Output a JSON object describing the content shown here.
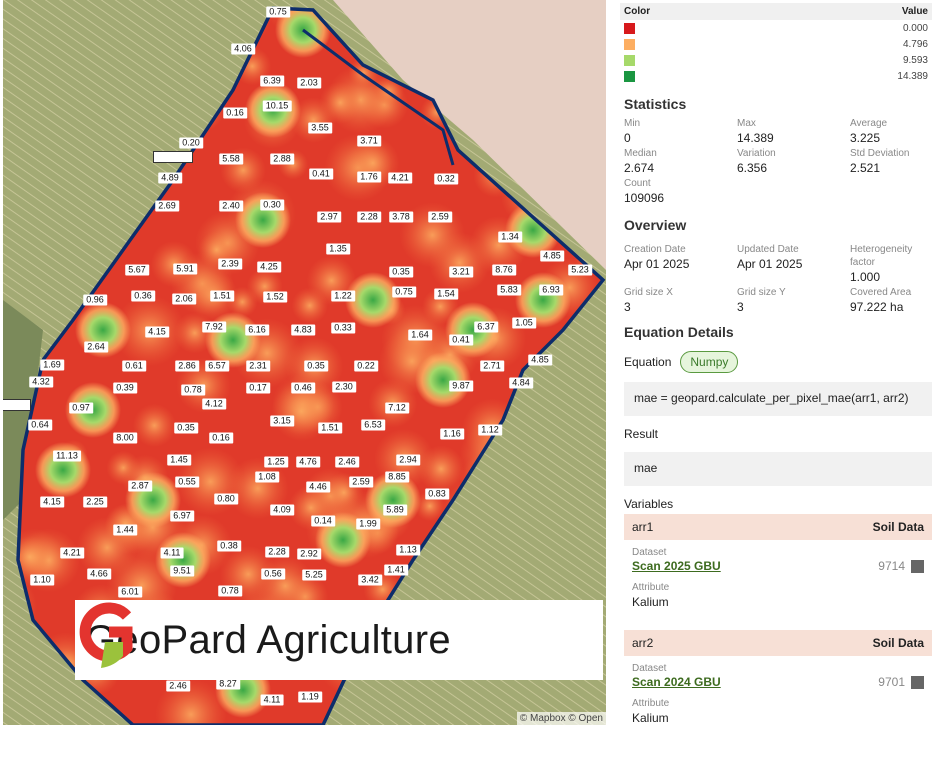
{
  "legend": {
    "header_color": "Color",
    "header_value": "Value",
    "items": [
      {
        "color": "#d7191c",
        "value": "0.000"
      },
      {
        "color": "#fdae61",
        "value": "4.796"
      },
      {
        "color": "#a6d96a",
        "value": "9.593"
      },
      {
        "color": "#1a9641",
        "value": "14.389"
      }
    ]
  },
  "statistics": {
    "title": "Statistics",
    "items": [
      {
        "label": "Min",
        "value": "0"
      },
      {
        "label": "Max",
        "value": "14.389"
      },
      {
        "label": "Average",
        "value": "3.225"
      },
      {
        "label": "Median",
        "value": "2.674"
      },
      {
        "label": "Variation",
        "value": "6.356"
      },
      {
        "label": "Std Deviation",
        "value": "2.521"
      },
      {
        "label": "Count",
        "value": "109096"
      }
    ]
  },
  "overview": {
    "title": "Overview",
    "items": [
      {
        "label": "Creation Date",
        "value": "Apr 01 2025"
      },
      {
        "label": "Updated Date",
        "value": "Apr 01 2025"
      },
      {
        "label": "Heterogeneity factor",
        "value": "1.000"
      },
      {
        "label": "Grid size X",
        "value": "3"
      },
      {
        "label": "Grid size Y",
        "value": "3"
      },
      {
        "label": "Covered Area",
        "value": "97.222 ha"
      }
    ]
  },
  "equation": {
    "title": "Equation Details",
    "label": "Equation",
    "badge": "Numpy",
    "code": "mae = geopard.calculate_per_pixel_mae(arr1, arr2)",
    "result_label": "Result",
    "result": "mae"
  },
  "variables": {
    "title": "Variables",
    "items": [
      {
        "name": "arr1",
        "type": "Soil Data",
        "dataset_label": "Dataset",
        "dataset": "Scan 2025 GBU",
        "id": "9714",
        "attribute_label": "Attribute",
        "attribute": "Kalium"
      },
      {
        "name": "arr2",
        "type": "Soil Data",
        "dataset_label": "Dataset",
        "dataset": "Scan 2024 GBU",
        "id": "9701",
        "attribute_label": "Attribute",
        "attribute": "Kalium"
      }
    ]
  },
  "map": {
    "attribution": "© Mapbox © Open",
    "logo_text": "GeoPard Agriculture",
    "labels": [
      "0.75",
      "4.06",
      "6.39",
      "2.03",
      "10.15",
      "0.16",
      "3.55",
      "3.71",
      "0.20",
      "5.58",
      "2.88",
      "0.41",
      "1.76",
      "4.21",
      "0.32",
      "4.89",
      "2.69",
      "2.40",
      "0.30",
      "2.97",
      "2.28",
      "3.78",
      "2.59",
      "1.34",
      "1.35",
      "4.85",
      "5.67",
      "5.91",
      "2.39",
      "4.25",
      "0.35",
      "3.21",
      "8.76",
      "5.23",
      "0.75",
      "1.54",
      "5.83",
      "6.93",
      "0.36",
      "2.06",
      "1.51",
      "1.52",
      "1.22",
      "0.96",
      "4.15",
      "7.92",
      "6.16",
      "4.83",
      "0.33",
      "6.37",
      "1.05",
      "1.64",
      "0.41",
      "2.64",
      "0.61",
      "2.86",
      "6.57",
      "2.31",
      "0.35",
      "0.22",
      "2.71",
      "4.85",
      "1.69",
      "4.32",
      "0.39",
      "0.78",
      "4.12",
      "0.17",
      "0.46",
      "2.30",
      "9.87",
      "4.84",
      "0.97",
      "7.12",
      "0.64",
      "3.15",
      "0.35",
      "0.16",
      "1.51",
      "6.53",
      "1.16",
      "1.12",
      "8.00",
      "11.13",
      "1.45",
      "1.25",
      "4.76",
      "2.46",
      "2.94",
      "1.08",
      "8.85",
      "2.87",
      "0.55",
      "4.46",
      "2.59",
      "0.83",
      "4.15",
      "2.25",
      "0.80",
      "5.89",
      "6.97",
      "4.09",
      "0.14",
      "1.99",
      "1.44",
      "0.38",
      "2.28",
      "2.92",
      "1.13",
      "4.21",
      "4.11",
      "9.51",
      "4.66",
      "0.56",
      "5.25",
      "3.42",
      "1.41",
      "1.10",
      "6.01",
      "0.78",
      "2.46",
      "8.27",
      "4.11",
      "1.19"
    ]
  }
}
